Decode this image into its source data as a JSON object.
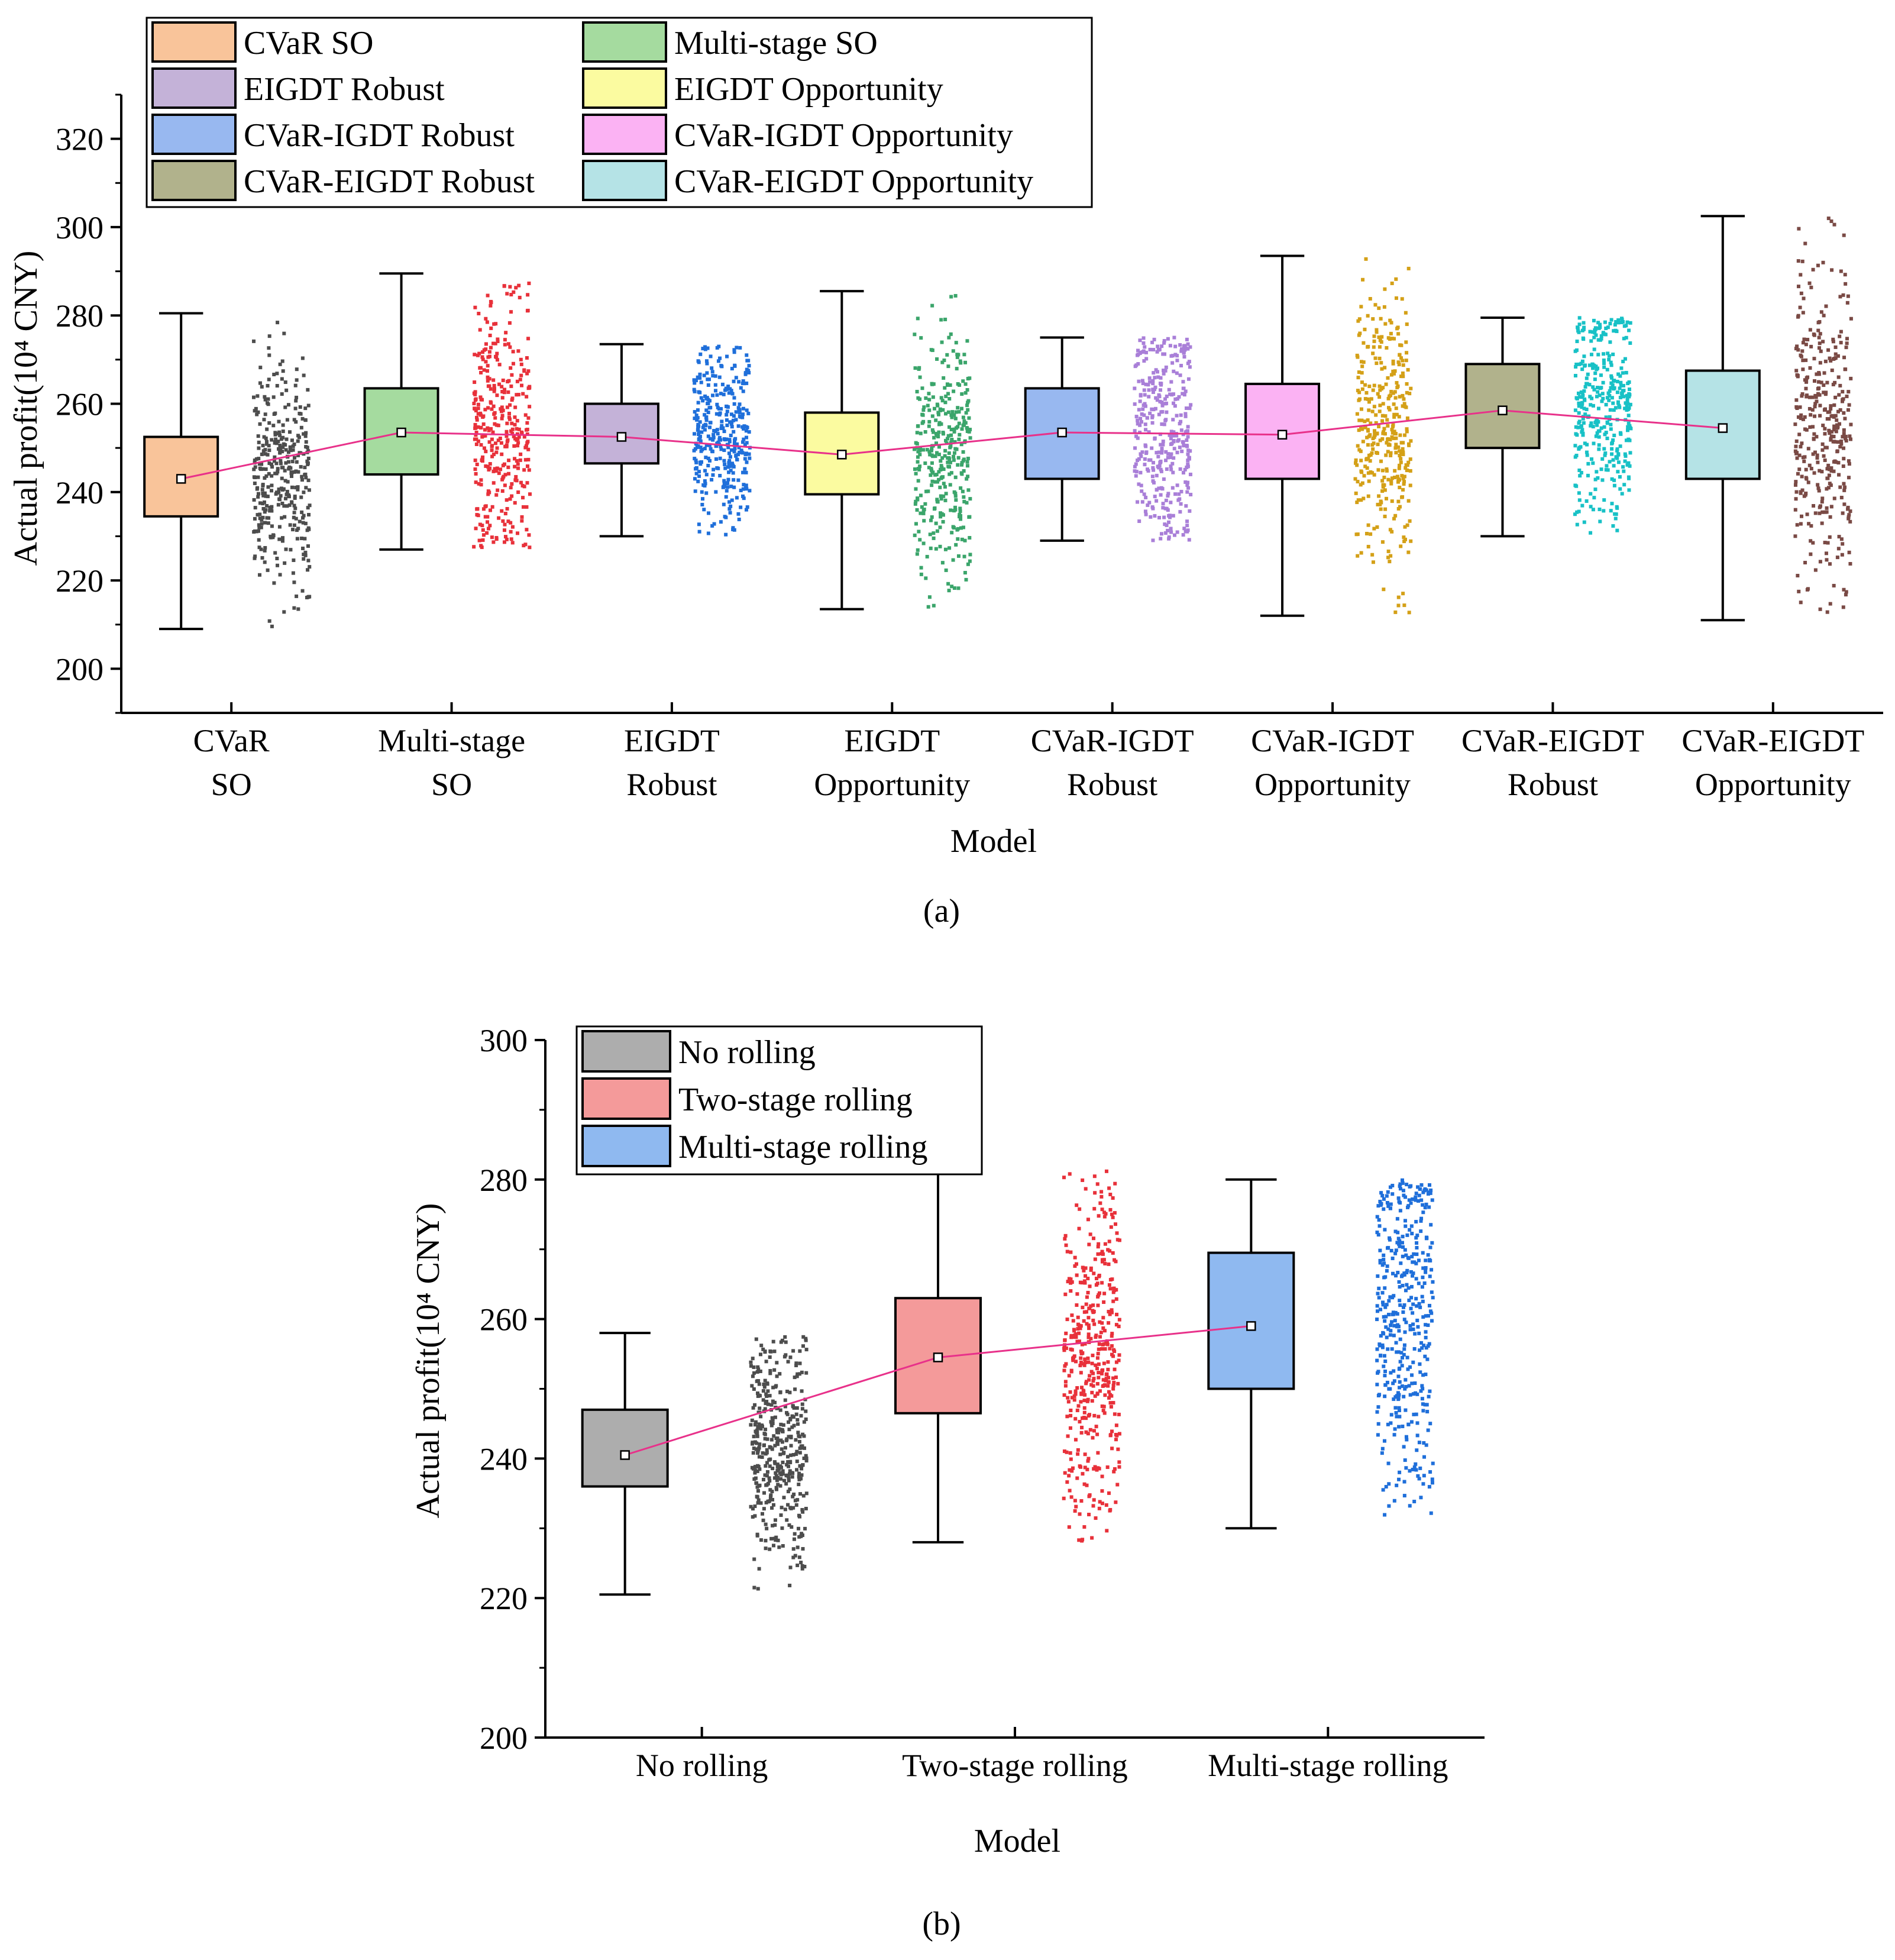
{
  "chart_data": [
    {
      "type": "box",
      "panel_label": "(a)",
      "xlabel": "Model",
      "ylabel": "Actual profit(10⁴ CNY)",
      "ylim": [
        190,
        330
      ],
      "yticks": [
        200,
        220,
        240,
        260,
        280,
        300,
        320
      ],
      "categories": [
        {
          "label": [
            "CVaR",
            "SO"
          ],
          "legend": "CVaR SO",
          "fill": "#F9C49A",
          "scatter_color": "#4D4D4D",
          "min": 209,
          "q1": 234.5,
          "median": 234.5,
          "q3": 252.5,
          "max": 280.5,
          "mean": 243
        },
        {
          "label": [
            "Multi-stage",
            "SO"
          ],
          "legend": "Multi-stage SO",
          "fill": "#A5DB9F",
          "scatter_color": "#E8313A",
          "min": 227,
          "q1": 244,
          "median": 244,
          "q3": 263.5,
          "max": 289.5,
          "mean": 253.5
        },
        {
          "label": [
            "EIGDT",
            "Robust"
          ],
          "legend": "EIGDT Robust",
          "fill": "#C4B2D8",
          "scatter_color": "#1F6FDA",
          "min": 230,
          "q1": 246.5,
          "median": 246.5,
          "q3": 260,
          "max": 273.5,
          "mean": 252.5
        },
        {
          "label": [
            "EIGDT",
            "Opportunity"
          ],
          "legend": "EIGDT Opportunity",
          "fill": "#FBFBA0",
          "scatter_color": "#3BA56B",
          "min": 213.5,
          "q1": 239.5,
          "median": 239.5,
          "q3": 258,
          "max": 285.5,
          "mean": 248.5
        },
        {
          "label": [
            "CVaR-IGDT",
            "Robust"
          ],
          "legend": "CVaR-IGDT Robust",
          "fill": "#98B8F0",
          "scatter_color": "#A97FD8",
          "min": 229,
          "q1": 243,
          "median": 243,
          "q3": 263.5,
          "max": 275,
          "mean": 253.5
        },
        {
          "label": [
            "CVaR-IGDT",
            "Opportunity"
          ],
          "legend": "CVaR-IGDT Opportunity",
          "fill": "#FBB2F3",
          "scatter_color": "#D4A017",
          "min": 212,
          "q1": 243,
          "median": 243,
          "q3": 264.5,
          "max": 293.5,
          "mean": 253
        },
        {
          "label": [
            "CVaR-EIGDT",
            "Robust"
          ],
          "legend": "CVaR-EIGDT Robust",
          "fill": "#B1B28C",
          "scatter_color": "#18C1C6",
          "min": 230,
          "q1": 250,
          "median": 250,
          "q3": 269,
          "max": 279.5,
          "mean": 258.5
        },
        {
          "label": [
            "CVaR-EIGDT",
            "Opportunity"
          ],
          "legend": "CVaR-EIGDT Opportunity",
          "fill": "#B5E3E6",
          "scatter_color": "#7A4A45",
          "min": 211,
          "q1": 243,
          "median": 243,
          "q3": 267.5,
          "max": 302.5,
          "mean": 254.5
        }
      ],
      "mean_line_color": "#E8318A"
    },
    {
      "type": "box",
      "panel_label": "(b)",
      "xlabel": "Model",
      "ylabel": "Actual profit(10⁴ CNY)",
      "ylim": [
        200,
        300
      ],
      "yticks": [
        200,
        220,
        240,
        260,
        280,
        300
      ],
      "categories": [
        {
          "label": [
            "No rolling"
          ],
          "legend": "No rolling",
          "fill": "#ADADAD",
          "scatter_color": "#4D4D4D",
          "min": 220.5,
          "q1": 236,
          "median": 236,
          "q3": 247,
          "max": 258,
          "mean": 240.5
        },
        {
          "label": [
            "Two-stage rolling"
          ],
          "legend": "Two-stage rolling",
          "fill": "#F49A9A",
          "scatter_color": "#E8313A",
          "min": 228,
          "q1": 246.5,
          "median": 246.5,
          "q3": 263,
          "max": 282,
          "mean": 254.5
        },
        {
          "label": [
            "Multi-stage rolling"
          ],
          "legend": "Multi-stage rolling",
          "fill": "#8FB9F0",
          "scatter_color": "#1F6FDA",
          "min": 230,
          "q1": 250,
          "median": 250,
          "q3": 269.5,
          "max": 280,
          "mean": 259
        }
      ],
      "mean_line_color": "#E8318A"
    }
  ]
}
